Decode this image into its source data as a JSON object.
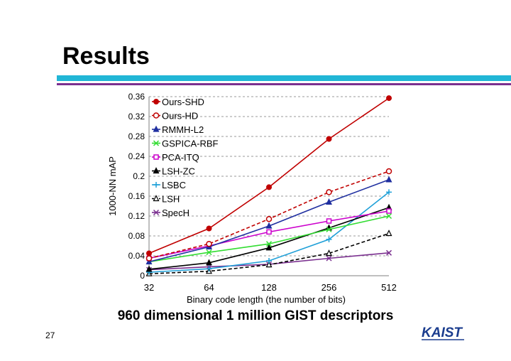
{
  "slide": {
    "title": "Results",
    "caption": "960 dimensional 1 million GIST descriptors",
    "page_number": "27",
    "logo_text": "KAIST"
  },
  "colors": {
    "accent_bar": "#21b6d6",
    "accent_line": "#7a2f8f",
    "logo": "#1a3c8e"
  },
  "chart_data": {
    "type": "line",
    "title": "",
    "xlabel": "Binary code length (the number of bits)",
    "ylabel": "1000-NN mAP",
    "categories": [
      "32",
      "64",
      "128",
      "256",
      "512"
    ],
    "ylim": [
      0,
      0.36
    ],
    "yticks": [
      0,
      0.04,
      0.08,
      0.12,
      0.16,
      0.2,
      0.24,
      0.28,
      0.32,
      0.36
    ],
    "ytick_labels": [
      "0",
      "0.04",
      "0.08",
      "0.12",
      "0.16",
      "0.2",
      "0.24",
      "0.28",
      "0.32",
      "0.36"
    ],
    "grid": "horizontal dashed",
    "legend": "top-left",
    "series": [
      {
        "name": "Ours-SHD",
        "values": [
          0.045,
          0.095,
          0.178,
          0.275,
          0.357
        ],
        "color": "#c00000",
        "marker": "circle-filled",
        "dash": "solid"
      },
      {
        "name": "Ours-HD",
        "values": [
          0.035,
          0.064,
          0.114,
          0.168,
          0.21
        ],
        "color": "#c00000",
        "marker": "circle-open",
        "dash": "dashed"
      },
      {
        "name": "RMMH-L2",
        "values": [
          0.028,
          0.058,
          0.1,
          0.148,
          0.193
        ],
        "color": "#1f2fa0",
        "marker": "triangle-filled",
        "dash": "solid"
      },
      {
        "name": "GSPICA-RBF",
        "values": [
          0.028,
          0.047,
          0.064,
          0.093,
          0.12
        ],
        "color": "#33dd33",
        "marker": "x",
        "dash": "solid"
      },
      {
        "name": "PCA-ITQ",
        "values": [
          0.035,
          0.06,
          0.088,
          0.11,
          0.13
        ],
        "color": "#cc00cc",
        "marker": "square-open",
        "dash": "solid"
      },
      {
        "name": "LSH-ZC",
        "values": [
          0.013,
          0.026,
          0.056,
          0.096,
          0.137
        ],
        "color": "#000000",
        "marker": "triangle-filled",
        "dash": "solid"
      },
      {
        "name": "LSBC",
        "values": [
          0.007,
          0.014,
          0.03,
          0.073,
          0.168
        ],
        "color": "#1fa0d8",
        "marker": "plus",
        "dash": "solid"
      },
      {
        "name": "LSH",
        "values": [
          0.004,
          0.009,
          0.022,
          0.045,
          0.085
        ],
        "color": "#000000",
        "marker": "triangle-open",
        "dash": "dashed"
      },
      {
        "name": "SpecH",
        "values": [
          0.012,
          0.018,
          0.023,
          0.035,
          0.046
        ],
        "color": "#7a2f8f",
        "marker": "x",
        "dash": "solid"
      }
    ]
  }
}
